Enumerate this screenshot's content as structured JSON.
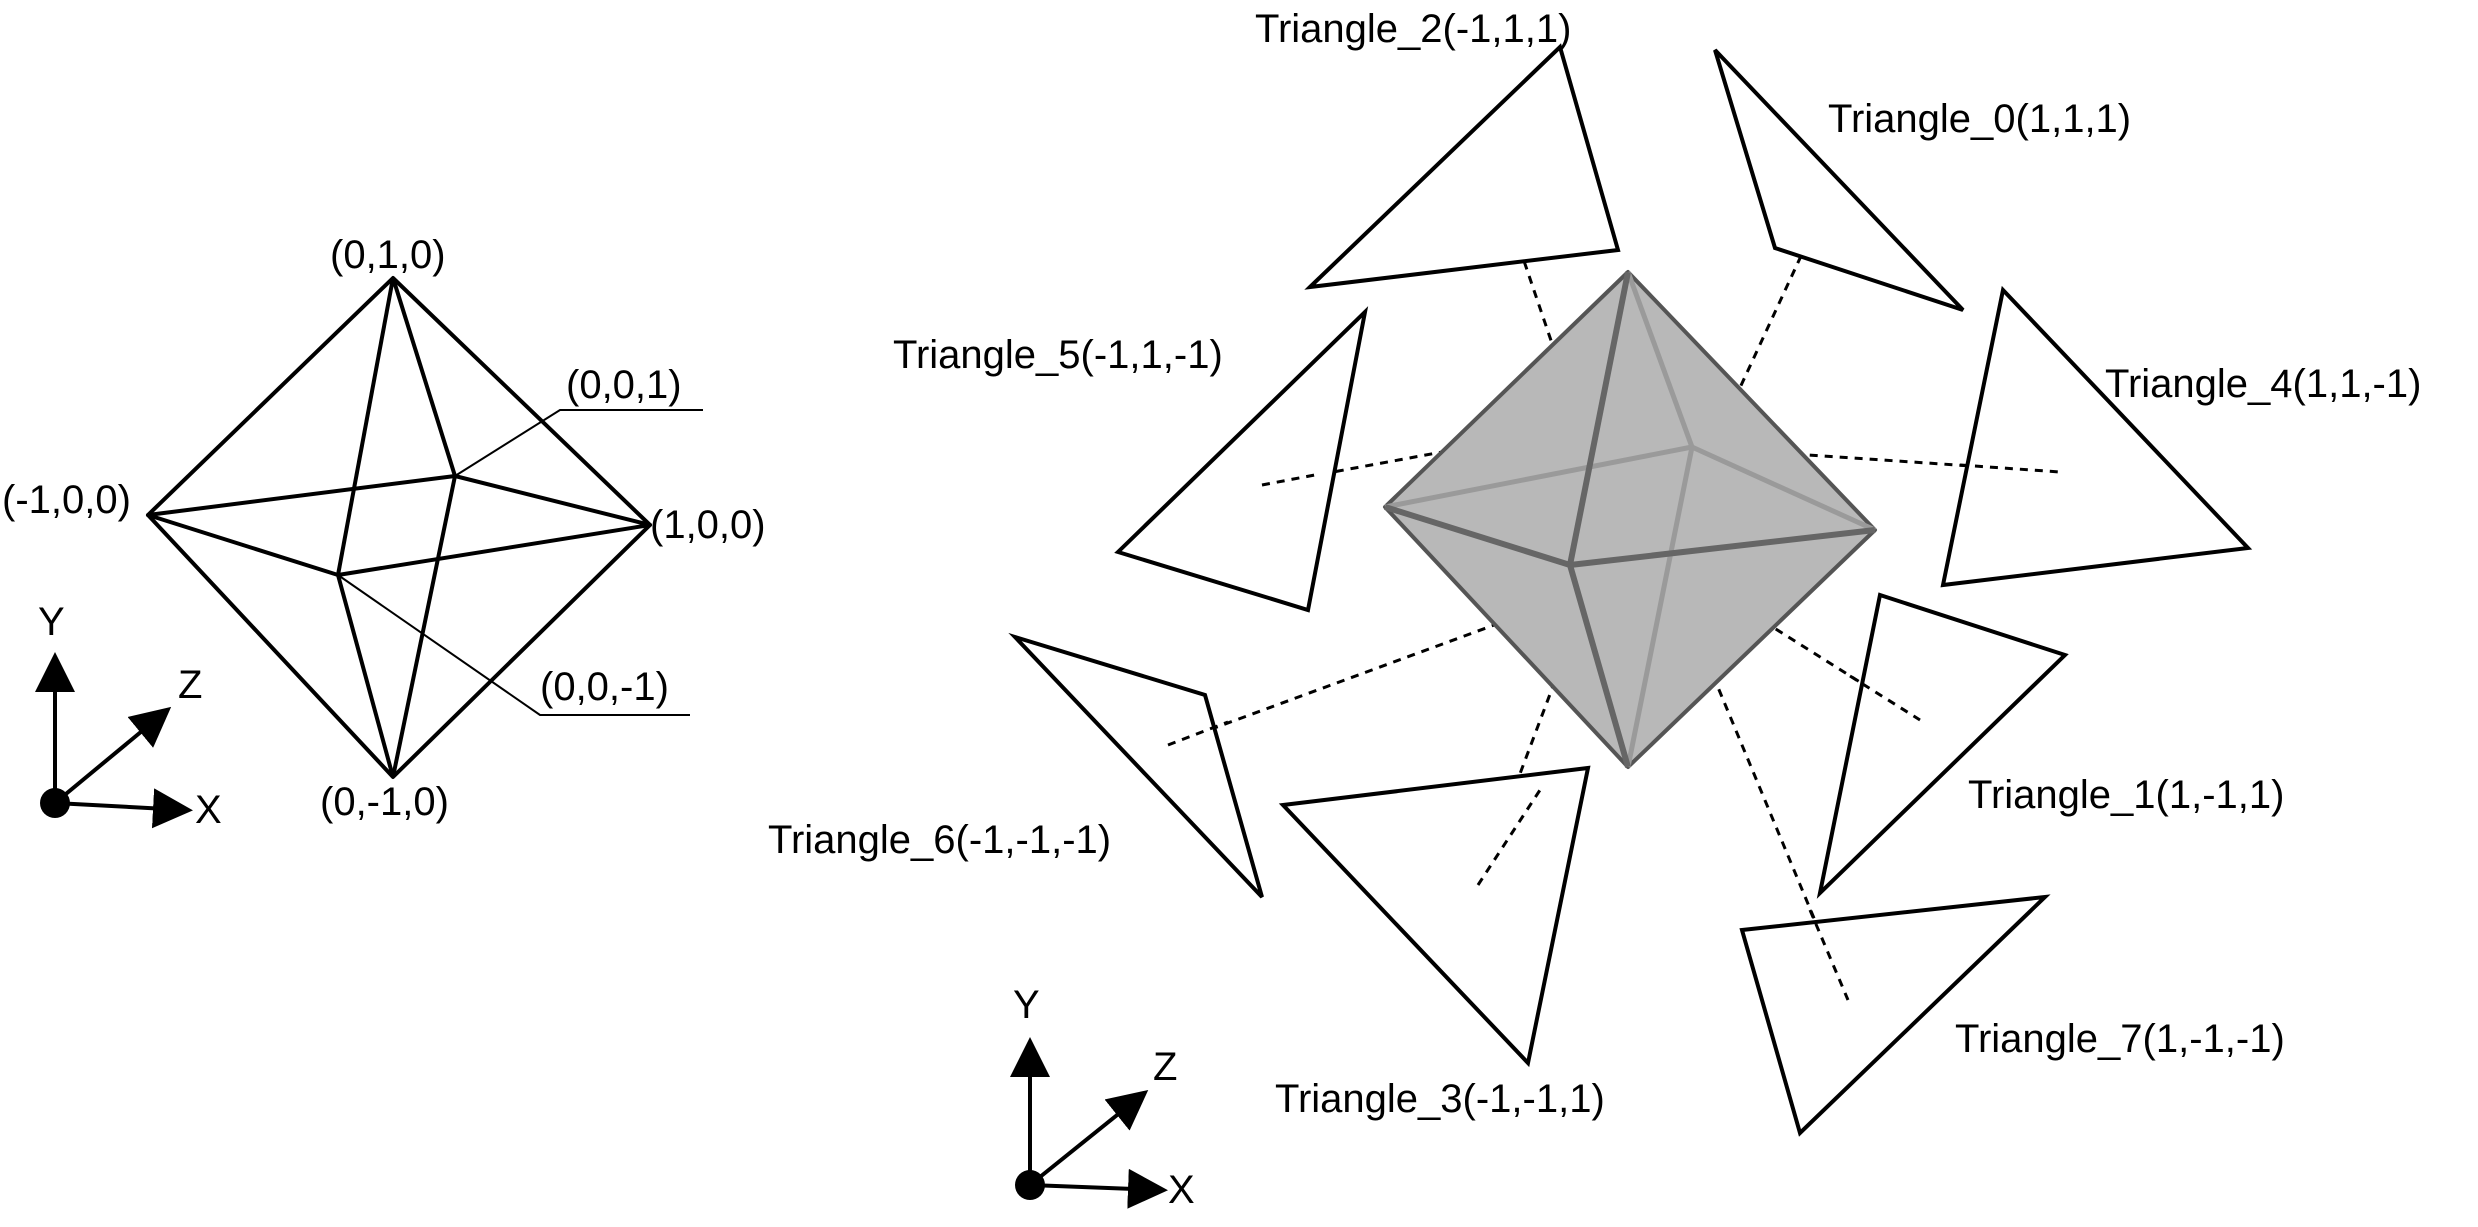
{
  "left_octahedron": {
    "vertex_labels": {
      "top": "(0,1,0)",
      "bottom": "(0,-1,0)",
      "left": "(-1,0,0)",
      "right": "(1,0,0)",
      "back": "(0,0,1)",
      "front": "(0,0,-1)"
    }
  },
  "axes_left": {
    "x": "X",
    "y": "Y",
    "z": "Z"
  },
  "axes_right": {
    "x": "X",
    "y": "Y",
    "z": "Z"
  },
  "triangles": [
    {
      "label": "Triangle_0(1,1,1)"
    },
    {
      "label": "Triangle_1(1,-1,1)"
    },
    {
      "label": "Triangle_2(-1,1,1)"
    },
    {
      "label": "Triangle_3(-1,-1,1)"
    },
    {
      "label": "Triangle_4(1,1,-1)"
    },
    {
      "label": "Triangle_5(-1,1,-1)"
    },
    {
      "label": "Triangle_6(-1,-1,-1)"
    },
    {
      "label": "Triangle_7(1,-1,-1)"
    }
  ]
}
